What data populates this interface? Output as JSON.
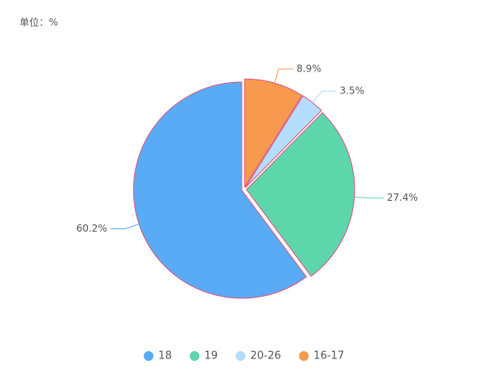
{
  "chart_data": {
    "type": "pie",
    "title": "单位：%",
    "categories": [
      "18",
      "19",
      "20-26",
      "16-17"
    ],
    "values": [
      60.2,
      27.4,
      3.5,
      8.9
    ],
    "value_labels": [
      "60.2%",
      "27.4%",
      "3.5%",
      "8.9%"
    ],
    "colors": [
      "#5aabf5",
      "#5ed6ab",
      "#b3ddfa",
      "#f79a4f"
    ],
    "legend": "bottom"
  }
}
